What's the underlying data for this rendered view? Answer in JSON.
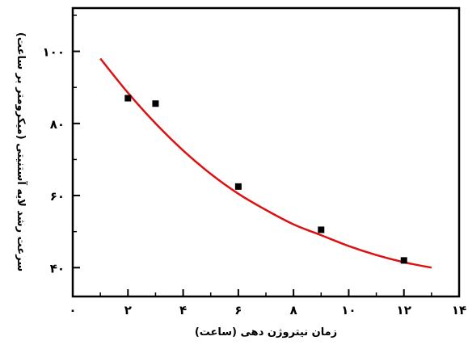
{
  "chart_data": {
    "type": "scatter",
    "title": "",
    "xlabel": "زمان نیتروژن دهی (ساعت)",
    "ylabel": "سرعت رشد لایه آستنیتی (میکرومتر بر ساعت)",
    "xlim": [
      0,
      14
    ],
    "ylim": [
      32,
      112
    ],
    "x_ticks": [
      0,
      2,
      4,
      6,
      8,
      10,
      12,
      14
    ],
    "x_tick_labels": [
      "٠",
      "٢",
      "۴",
      "۶",
      "٨",
      "١٠",
      "١٢",
      "١۴"
    ],
    "y_ticks": [
      40,
      60,
      80,
      100
    ],
    "y_tick_labels": [
      "۴٠",
      "۶٠",
      "٨٠",
      "١٠٠"
    ],
    "grid": false,
    "legend": "none",
    "series": [
      {
        "kind": "points",
        "x": [
          2,
          3,
          6,
          9,
          12
        ],
        "y": [
          87,
          85.5,
          62.5,
          50.5,
          42
        ]
      },
      {
        "kind": "fit-curve",
        "x": [
          1,
          2,
          3,
          4,
          5,
          6,
          7,
          8,
          9,
          10,
          11,
          12,
          13
        ],
        "y": [
          98,
          88.5,
          80,
          72.5,
          66,
          60.5,
          56,
          52,
          49,
          46,
          43.5,
          41.5,
          40
        ]
      }
    ],
    "colors": {
      "points": "#000000",
      "curve": "#dd1111",
      "axes": "#000000"
    }
  }
}
